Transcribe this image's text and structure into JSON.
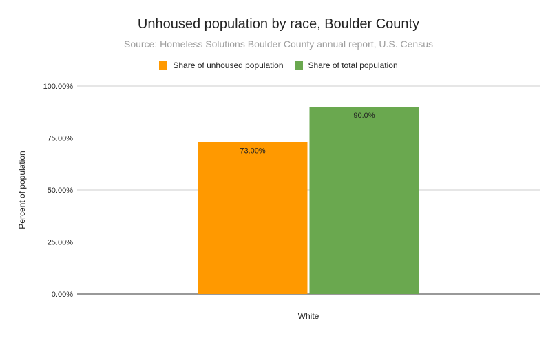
{
  "chart_data": {
    "type": "bar",
    "title": "Unhoused population by race, Boulder County",
    "subtitle": "Source: Homeless Solutions Boulder County annual report, U.S. Census",
    "xlabel": "",
    "ylabel": "Percent of population",
    "categories": [
      "White"
    ],
    "series": [
      {
        "name": "Share of unhoused population",
        "values": [
          73.0
        ],
        "labels": [
          "73.00%"
        ],
        "color": "#ff9900"
      },
      {
        "name": "Share of total population",
        "values": [
          90.0
        ],
        "labels": [
          "90.0%"
        ],
        "color": "#6aa84f"
      }
    ],
    "ylim": [
      0,
      100
    ],
    "yticks": [
      {
        "value": 0,
        "label": "0.00%"
      },
      {
        "value": 25,
        "label": "25.00%"
      },
      {
        "value": 50,
        "label": "50.00%"
      },
      {
        "value": 75,
        "label": "75.00%"
      },
      {
        "value": 100,
        "label": "100.00%"
      }
    ],
    "grid": true,
    "legend_position": "top"
  }
}
